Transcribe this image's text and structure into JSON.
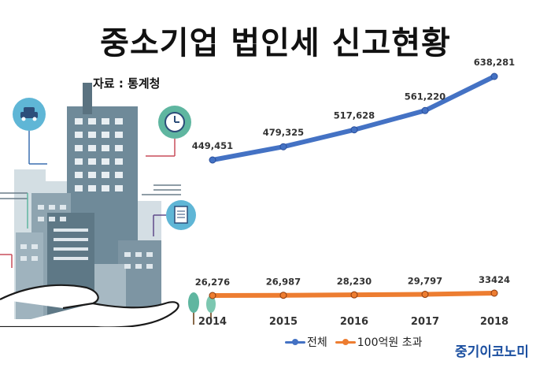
{
  "title": "중소기업 법인세 신고현황",
  "source": "자료 : 통계청",
  "brand": "중기이코노미",
  "colors": {
    "total": "#4472c4",
    "over100": "#ed7d31"
  },
  "chart_data": {
    "type": "line",
    "categories": [
      "2014",
      "2015",
      "2016",
      "2017",
      "2018"
    ],
    "series": [
      {
        "name": "전체",
        "values": [
          449451,
          479325,
          517628,
          561220,
          638281
        ],
        "labels": [
          "449,451",
          "479,325",
          "517,628",
          "561,220",
          "638,281"
        ]
      },
      {
        "name": "100억원 초과",
        "values": [
          26276,
          26987,
          28230,
          29797,
          33424
        ],
        "labels": [
          "26,276",
          "26,987",
          "28,230",
          "29,797",
          "33424"
        ]
      }
    ],
    "xlabel": "",
    "ylabel": "",
    "legend_position": "bottom"
  }
}
